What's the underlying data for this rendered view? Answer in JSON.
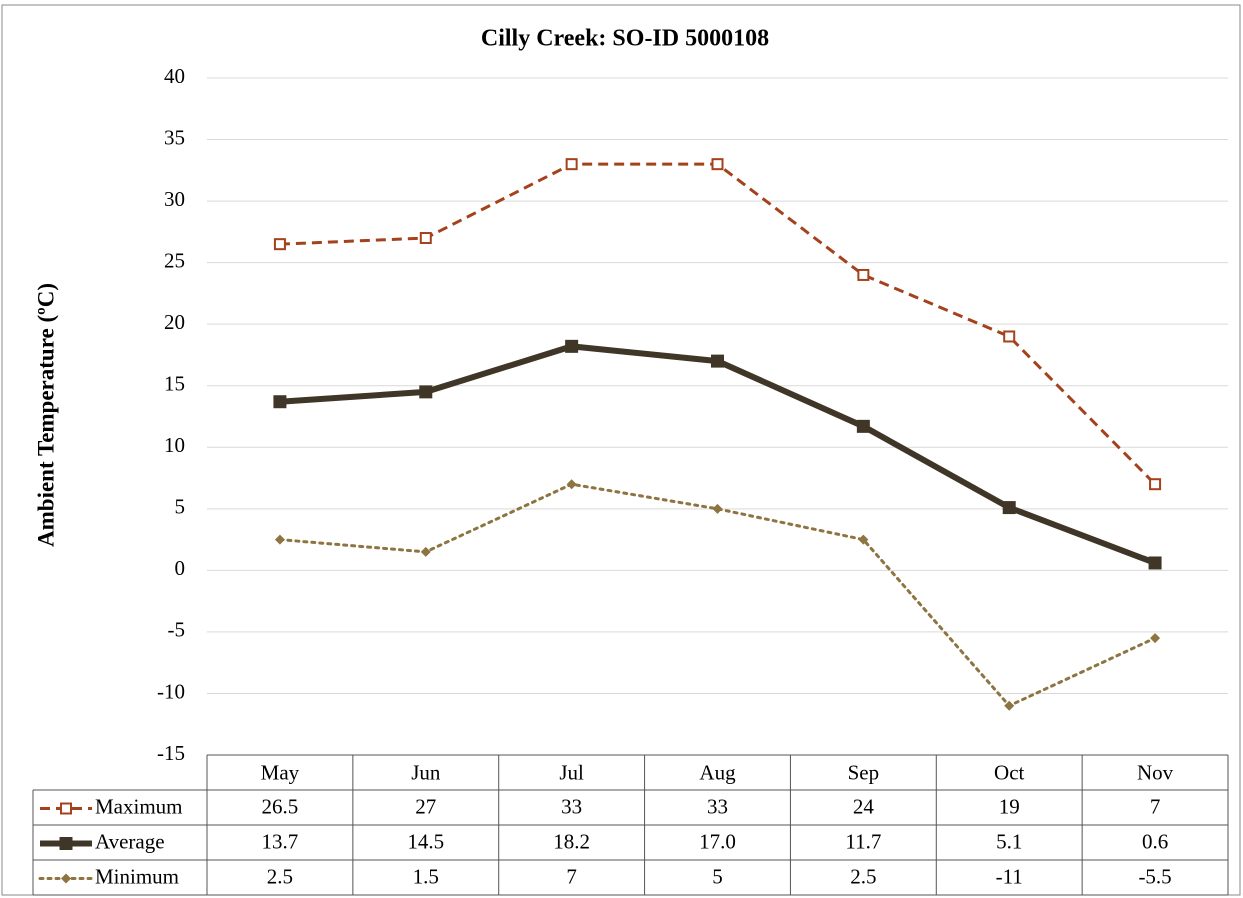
{
  "chart_data": {
    "type": "line",
    "title": "Cilly Creek: SO-ID 5000108",
    "y_label": "Ambient Temperature (ºC)",
    "categories": [
      "May",
      "Jun",
      "Jul",
      "Aug",
      "Sep",
      "Oct",
      "Nov"
    ],
    "series": [
      {
        "name": "Maximum",
        "color": "#a3421c",
        "style": "dashed",
        "marker": "open-square",
        "values": [
          26.5,
          27,
          33,
          33,
          24,
          19,
          7
        ]
      },
      {
        "name": "Average",
        "color": "#403628",
        "style": "solid",
        "marker": "square",
        "values": [
          13.7,
          14.5,
          18.2,
          17,
          11.7,
          5.1,
          0.6
        ],
        "value_labels": [
          "13.7",
          "14.5",
          "18.2",
          "17.0",
          "11.7",
          "5.1",
          "0.6"
        ]
      },
      {
        "name": "Minimum",
        "color": "#8e7441",
        "style": "dotted",
        "marker": "diamond",
        "values": [
          2.5,
          1.5,
          7,
          5,
          2.5,
          -11,
          -5.5
        ]
      }
    ],
    "ylim": [
      -15,
      40
    ],
    "yticks": [
      -15,
      -10,
      -5,
      0,
      5,
      10,
      15,
      20,
      25,
      30,
      35,
      40
    ],
    "grid": true,
    "data_table": true
  }
}
